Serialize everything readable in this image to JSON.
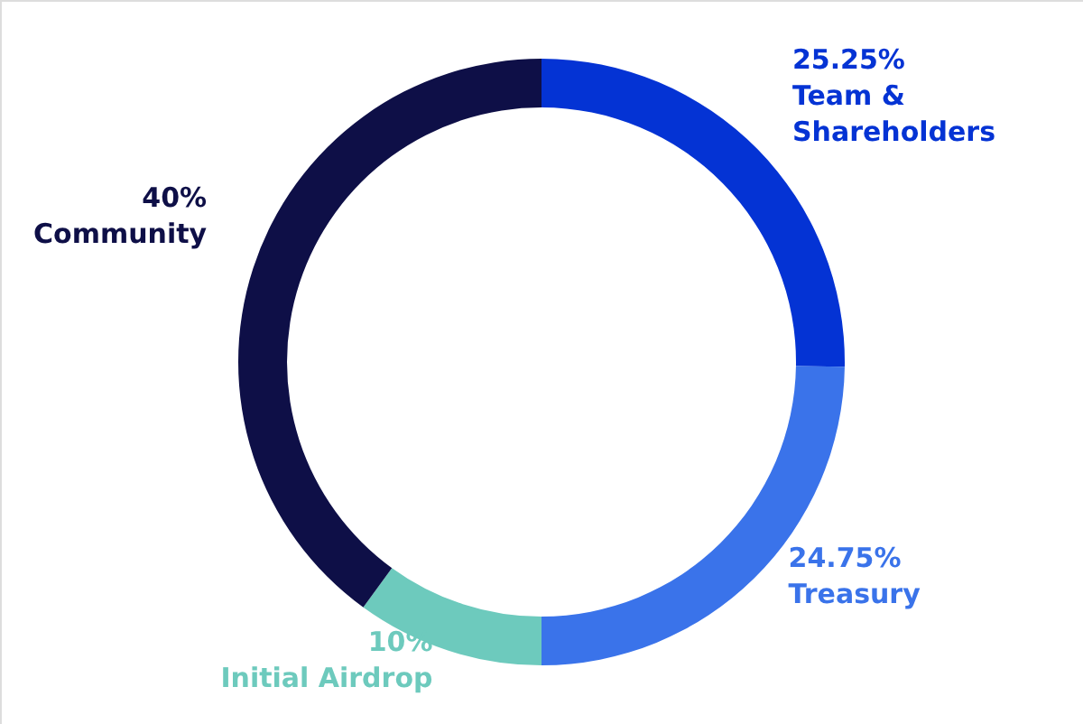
{
  "chart_data": {
    "type": "donut",
    "categories": [
      "Team & Shareholders",
      "Treasury",
      "Initial Airdrop",
      "Community"
    ],
    "values": [
      25.25,
      24.75,
      10,
      40
    ],
    "colors": [
      "#0433d4",
      "#3a73ea",
      "#6dcabd",
      "#0e0f47"
    ],
    "value_labels": [
      "25.25%",
      "24.75%",
      "10%",
      "40%"
    ]
  }
}
